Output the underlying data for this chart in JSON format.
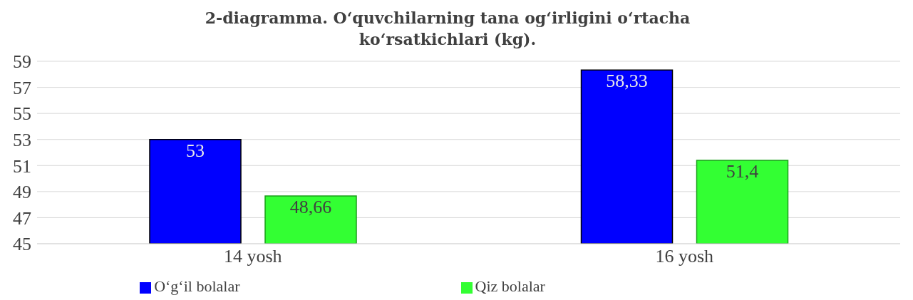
{
  "chart_data": {
    "type": "bar",
    "title": "2-diagramma. O‘quvchilarning tana og‘irligini o‘rtacha ko‘rsatkichlari (kg).",
    "categories": [
      "14 yosh",
      "16 yosh"
    ],
    "series": [
      {
        "name": "O‘g‘il bolalar",
        "color": "#0000ff",
        "values": [
          53,
          58.33
        ],
        "value_labels": [
          "53",
          "58,33"
        ]
      },
      {
        "name": "Qiz bolalar",
        "color": "#33ff33",
        "values": [
          48.66,
          51.4
        ],
        "value_labels": [
          "48,66",
          "51,4"
        ]
      }
    ],
    "ylim": [
      45,
      59
    ],
    "yticks": [
      45,
      47,
      49,
      51,
      53,
      55,
      57,
      59
    ],
    "grid": "y",
    "legend": "bottom"
  }
}
